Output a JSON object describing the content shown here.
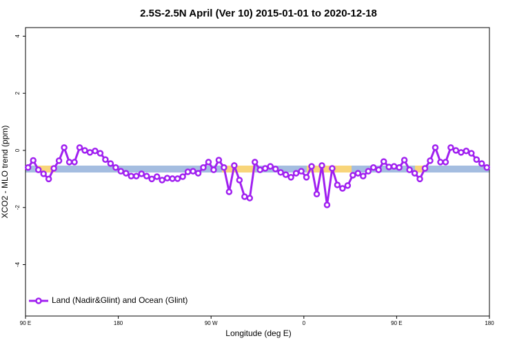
{
  "chart_data": {
    "type": "line",
    "title": "2.5S-2.5N April (Ver 10)   2015-01-01 to 2020-12-18",
    "xlabel": "Longitude (deg E)",
    "ylabel": "XCO2 - MLO trend (ppm)",
    "x": [
      92.5,
      97.5,
      102.5,
      107.5,
      112.5,
      117.5,
      122.5,
      127.5,
      132.5,
      137.5,
      142.5,
      147.5,
      152.5,
      157.5,
      162.5,
      167.5,
      172.5,
      177.5,
      182.5,
      187.5,
      192.5,
      197.5,
      202.5,
      207.5,
      212.5,
      217.5,
      222.5,
      227.5,
      232.5,
      237.5,
      242.5,
      247.5,
      252.5,
      257.5,
      262.5,
      267.5,
      272.5,
      277.5,
      282.5,
      287.5,
      292.5,
      297.5,
      302.5,
      307.5,
      312.5,
      317.5,
      322.5,
      327.5,
      332.5,
      337.5,
      342.5,
      347.5,
      352.5,
      357.5,
      362.5,
      367.5,
      372.5,
      377.5,
      382.5,
      387.5,
      392.5,
      397.5,
      402.5,
      407.5,
      412.5,
      417.5,
      422.5,
      427.5,
      432.5,
      437.5,
      442.5,
      447.5,
      452.5,
      457.5,
      462.5,
      467.5,
      472.5,
      477.5,
      482.5,
      487.5,
      492.5,
      497.5,
      502.5,
      507.5,
      512.5,
      517.5,
      522.5,
      527.5,
      532.5,
      537.5
    ],
    "series": [
      {
        "name": "Land (Nadir&Glint) and Ocean (Glint)",
        "color": "#a020f0",
        "values": [
          -0.6,
          -0.35,
          -0.68,
          -0.82,
          -1.0,
          -0.63,
          -0.36,
          0.1,
          -0.41,
          -0.41,
          0.1,
          0,
          -0.07,
          -0.02,
          -0.1,
          -0.32,
          -0.46,
          -0.6,
          -0.73,
          -0.8,
          -0.9,
          -0.9,
          -0.82,
          -0.9,
          -1.0,
          -0.92,
          -1.04,
          -0.97,
          -0.99,
          -0.99,
          -0.92,
          -0.75,
          -0.73,
          -0.8,
          -0.6,
          -0.41,
          -0.68,
          -0.34,
          -0.6,
          -1.45,
          -0.53,
          -1.04,
          -1.62,
          -1.67,
          -0.41,
          -0.68,
          -0.63,
          -0.56,
          -0.65,
          -0.77,
          -0.85,
          -0.94,
          -0.8,
          -0.73,
          -0.94,
          -0.56,
          -1.53,
          -0.53,
          -1.91,
          -0.63,
          -1.21,
          -1.33,
          -1.23,
          -0.87,
          -0.8,
          -0.9,
          -0.73,
          -0.6,
          -0.68,
          -0.39,
          -0.58,
          -0.56,
          -0.6,
          -0.34,
          -0.68,
          -0.8,
          -1.0,
          -0.63,
          -0.36,
          0.1,
          -0.41,
          -0.41,
          0.1,
          0,
          -0.07,
          -0.02,
          -0.1,
          -0.32,
          -0.46,
          -0.6
        ]
      }
    ],
    "xlim": [
      90,
      540
    ],
    "xticks": [
      {
        "value": 90,
        "label": "90 E"
      },
      180,
      {
        "value": 270,
        "label": "90 W"
      },
      {
        "value": 360,
        "label": "0"
      },
      {
        "value": 450,
        "label": "90 E"
      },
      {
        "value": 540,
        "label": "180"
      }
    ],
    "ylim": [
      -5.8,
      4.3
    ],
    "yticks": [
      -4,
      -2,
      0,
      2,
      4
    ],
    "legend": "bottom-left"
  }
}
